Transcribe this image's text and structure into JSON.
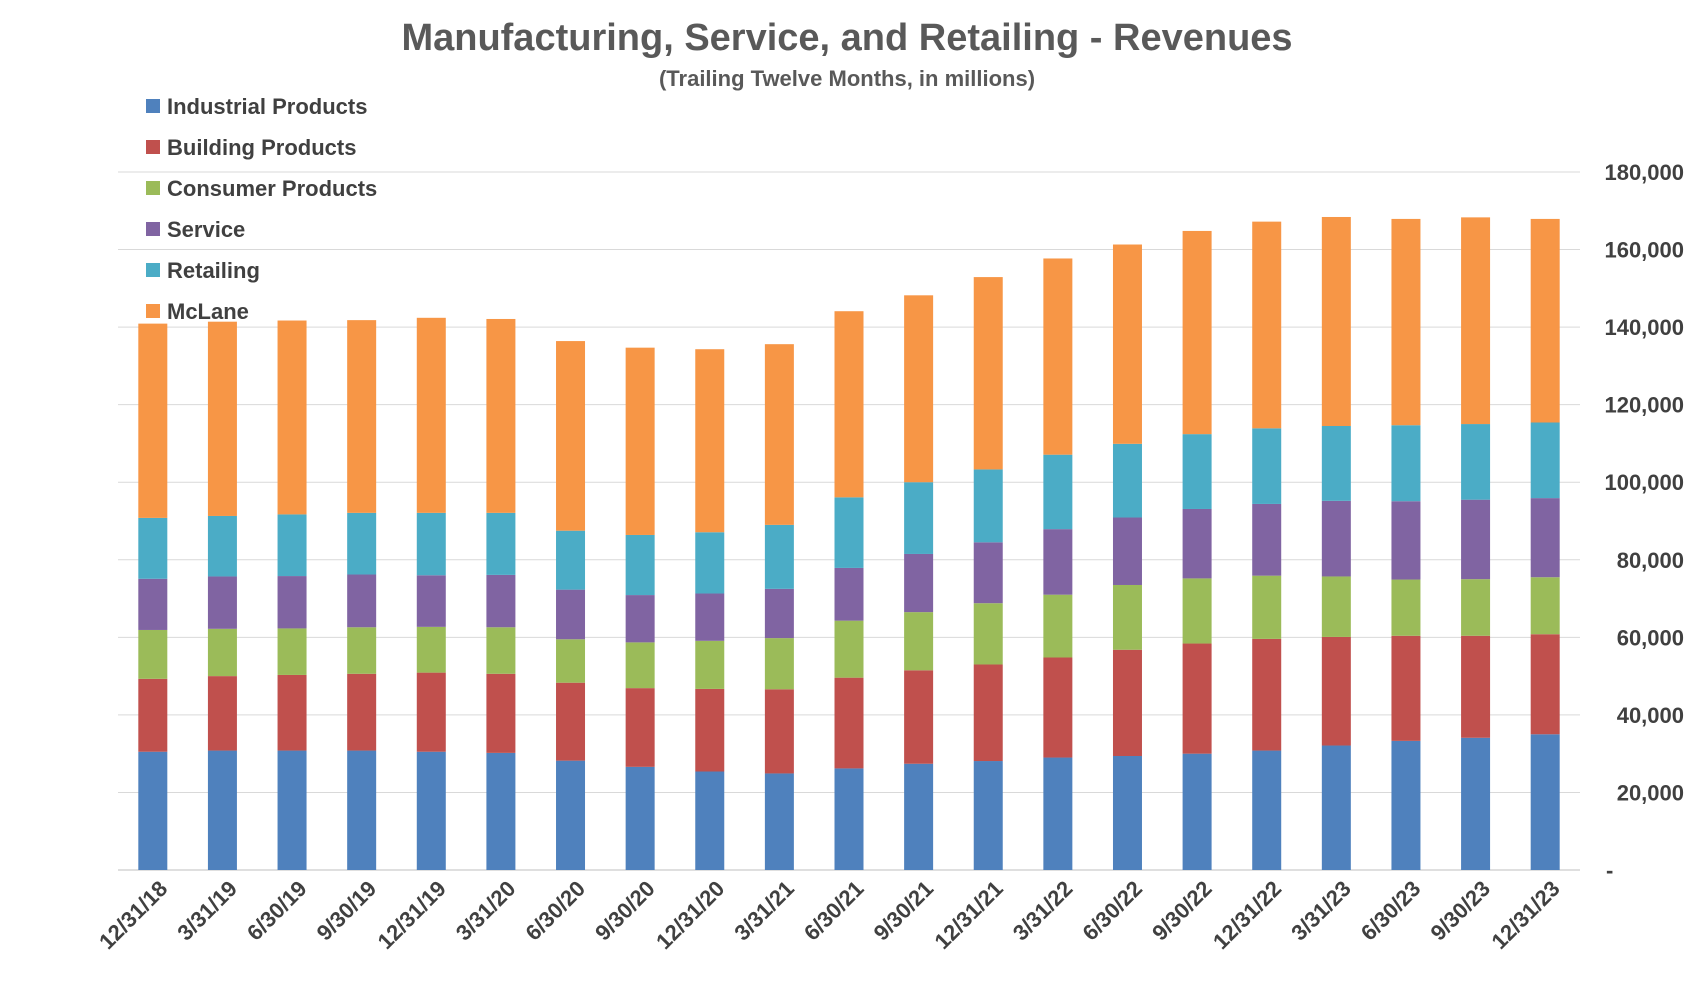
{
  "chart_data": {
    "type": "bar",
    "stacked": true,
    "title": "Manufacturing, Service, and Retailing  - Revenues",
    "subtitle": "(Trailing Twelve Months, in millions)",
    "xlabel": "",
    "ylabel": "",
    "ylim": [
      0,
      180000
    ],
    "yticks": [
      0,
      20000,
      40000,
      60000,
      80000,
      100000,
      120000,
      140000,
      160000,
      180000
    ],
    "ytick_labels": [
      "-",
      "20,000",
      "40,000",
      "60,000",
      "80,000",
      "100,000",
      "120,000",
      "140,000",
      "160,000",
      "180,000"
    ],
    "y_axis_position": "right",
    "grid": true,
    "legend_position": "top-left",
    "categories": [
      "12/31/18",
      "3/31/19",
      "6/30/19",
      "9/30/19",
      "12/31/19",
      "3/31/20",
      "6/30/20",
      "9/30/20",
      "12/31/20",
      "3/31/21",
      "6/30/21",
      "9/30/21",
      "12/31/21",
      "3/31/22",
      "6/30/22",
      "9/30/22",
      "12/31/22",
      "3/31/23",
      "6/30/23",
      "9/30/23",
      "12/31/23"
    ],
    "series": [
      {
        "name": "Industrial Products",
        "color": "#4F81BD",
        "values": [
          30500,
          30800,
          30800,
          30800,
          30500,
          30200,
          28200,
          26600,
          25400,
          24900,
          26200,
          27400,
          28100,
          29000,
          29400,
          30000,
          30800,
          32100,
          33300,
          34100,
          35000
        ]
      },
      {
        "name": "Building Products",
        "color": "#C0504D",
        "values": [
          18800,
          19200,
          19500,
          19800,
          20400,
          20400,
          20100,
          20300,
          21300,
          21700,
          23400,
          24100,
          24900,
          25800,
          27400,
          28400,
          28800,
          28000,
          27100,
          26300,
          25800
        ]
      },
      {
        "name": "Consumer Products",
        "color": "#9BBB59",
        "values": [
          12600,
          12200,
          12000,
          12000,
          11800,
          12000,
          11200,
          11800,
          12400,
          13200,
          14700,
          15000,
          15800,
          16200,
          16700,
          16800,
          16300,
          15600,
          14500,
          14600,
          14700
        ]
      },
      {
        "name": "Service",
        "color": "#8064A2",
        "values": [
          13200,
          13500,
          13500,
          13600,
          13300,
          13500,
          12800,
          12200,
          12200,
          12700,
          13600,
          15000,
          15700,
          16900,
          17400,
          17900,
          18500,
          19500,
          20200,
          20500,
          20400
        ]
      },
      {
        "name": "Retailing",
        "color": "#4BACC6",
        "values": [
          15700,
          15600,
          15900,
          15900,
          16100,
          16000,
          15200,
          15500,
          15800,
          16500,
          18200,
          18500,
          18800,
          19200,
          19000,
          19300,
          19500,
          19300,
          19600,
          19500,
          19500
        ]
      },
      {
        "name": "McLane",
        "color": "#F79646",
        "values": [
          50100,
          50100,
          50000,
          49700,
          50300,
          50000,
          48900,
          48300,
          47200,
          46600,
          48000,
          48200,
          49600,
          50600,
          51400,
          52400,
          53300,
          53900,
          53200,
          53300,
          52500
        ]
      }
    ]
  }
}
